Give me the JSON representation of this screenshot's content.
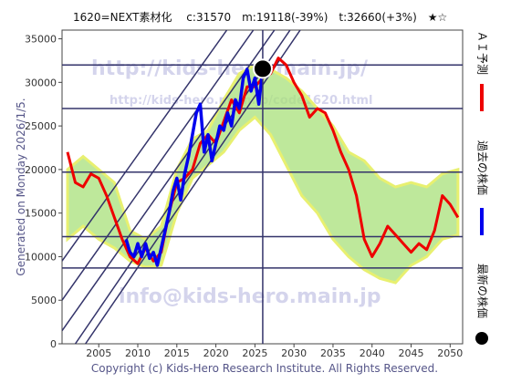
{
  "chart_data": {
    "type": "line",
    "title": "1620=NEXT素材化　 c:31570　m:19118(-39%)　t:32660(+3%)　★☆",
    "generated": "Generated on Monday 2026/1/5.",
    "footer": "Copyright (c) Kids-Hero Research Institute. All Rights Reserved.",
    "watermarks": [
      "http://kids-hero.main.jp/",
      "http://kids-hero.main.jp/code1620.html",
      "info@kids-hero.main.jp"
    ],
    "xlim": [
      2000.3,
      2051.6
    ],
    "ylim": [
      0,
      36000
    ],
    "xticks": [
      2005,
      2010,
      2015,
      2020,
      2025,
      2030,
      2035,
      2040,
      2045,
      2050
    ],
    "yticks": [
      0,
      5000,
      10000,
      15000,
      20000,
      25000,
      30000,
      35000
    ],
    "band": {
      "color": "#a8e07a",
      "x": [
        2001,
        2003,
        2005,
        2007,
        2009,
        2011,
        2013,
        2015,
        2017,
        2019,
        2021,
        2023,
        2025,
        2027,
        2029,
        2031,
        2033,
        2035,
        2037,
        2039,
        2041,
        2043,
        2045,
        2047,
        2049,
        2051
      ],
      "low": [
        12000,
        13500,
        12000,
        11000,
        9500,
        8800,
        9000,
        15000,
        19000,
        20500,
        22000,
        24500,
        26000,
        24000,
        20500,
        17000,
        15000,
        12000,
        10000,
        8500,
        7500,
        7000,
        9000,
        10000,
        12000,
        12500
      ],
      "high": [
        20000,
        21500,
        20000,
        18500,
        13000,
        12000,
        13500,
        20000,
        23500,
        24500,
        28000,
        31000,
        32000,
        31500,
        30500,
        29000,
        27000,
        25000,
        22000,
        21000,
        19000,
        18000,
        18500,
        18000,
        19500,
        20000
      ]
    },
    "hlines": [
      8700,
      12300,
      19700,
      27000,
      32000
    ],
    "trend_lines": [
      {
        "x0": 2002.0,
        "y0": 0,
        "x1": 2029.5,
        "y1": 36000
      },
      {
        "x0": 2003.3,
        "y0": 0,
        "x1": 2030.8,
        "y1": 36000
      },
      {
        "x0": 2000.3,
        "y0": 1500,
        "x1": 2027.5,
        "y1": 36000
      },
      {
        "x0": 2000.3,
        "y0": 5000,
        "x1": 2024.8,
        "y1": 36000
      },
      {
        "x0": 2000.3,
        "y0": 9500,
        "x1": 2021.4,
        "y1": 36000
      }
    ],
    "series": [
      {
        "name": "ＡＩ予測",
        "color": "#ee0000",
        "x": [
          2001,
          2002,
          2003,
          2004,
          2005,
          2006,
          2007,
          2008,
          2009,
          2010,
          2011,
          2012,
          2013,
          2014,
          2015,
          2016,
          2017,
          2018,
          2019,
          2020,
          2021,
          2022,
          2023,
          2024,
          2025,
          2026,
          2027,
          2028,
          2029,
          2030,
          2031,
          2032,
          2033,
          2034,
          2035,
          2036,
          2037,
          2038,
          2039,
          2040,
          2041,
          2042,
          2043,
          2044,
          2045,
          2046,
          2047,
          2048,
          2049,
          2050,
          2051
        ],
        "values": [
          22000,
          18500,
          18000,
          19500,
          19000,
          17000,
          14500,
          12000,
          10000,
          9200,
          11000,
          9500,
          10500,
          15000,
          18500,
          19000,
          20000,
          23000,
          24000,
          23000,
          25500,
          28000,
          26500,
          29500,
          29500,
          30500,
          31000,
          32800,
          32000,
          30000,
          28500,
          26000,
          27000,
          26500,
          24500,
          22000,
          20000,
          17000,
          12000,
          10000,
          11500,
          13500,
          12500,
          11500,
          10500,
          11500,
          10800,
          13000,
          17000,
          16000,
          14500
        ]
      },
      {
        "name": "過去の株価",
        "color": "#0000ee",
        "x": [
          2008.5,
          2009,
          2009.5,
          2010,
          2010.5,
          2011,
          2011.5,
          2012,
          2012.5,
          2013,
          2013.5,
          2014,
          2014.5,
          2015,
          2015.5,
          2016,
          2016.5,
          2017,
          2017.5,
          2018,
          2018.5,
          2019,
          2019.5,
          2020,
          2020.5,
          2021,
          2021.5,
          2022,
          2022.5,
          2023,
          2023.5,
          2024,
          2024.5,
          2025,
          2025.5,
          2026
        ],
        "values": [
          12000,
          10500,
          10000,
          11500,
          10000,
          11500,
          9800,
          10500,
          9000,
          11000,
          13000,
          15000,
          17500,
          19000,
          16500,
          19500,
          21500,
          24000,
          26500,
          27500,
          22000,
          24000,
          21000,
          23000,
          25000,
          24500,
          26500,
          25000,
          28000,
          27000,
          30500,
          31500,
          29000,
          30500,
          27500,
          31570
        ]
      }
    ],
    "latest": {
      "name": "最新の株価",
      "x": 2026,
      "value": 31570,
      "color": "#000000"
    }
  }
}
